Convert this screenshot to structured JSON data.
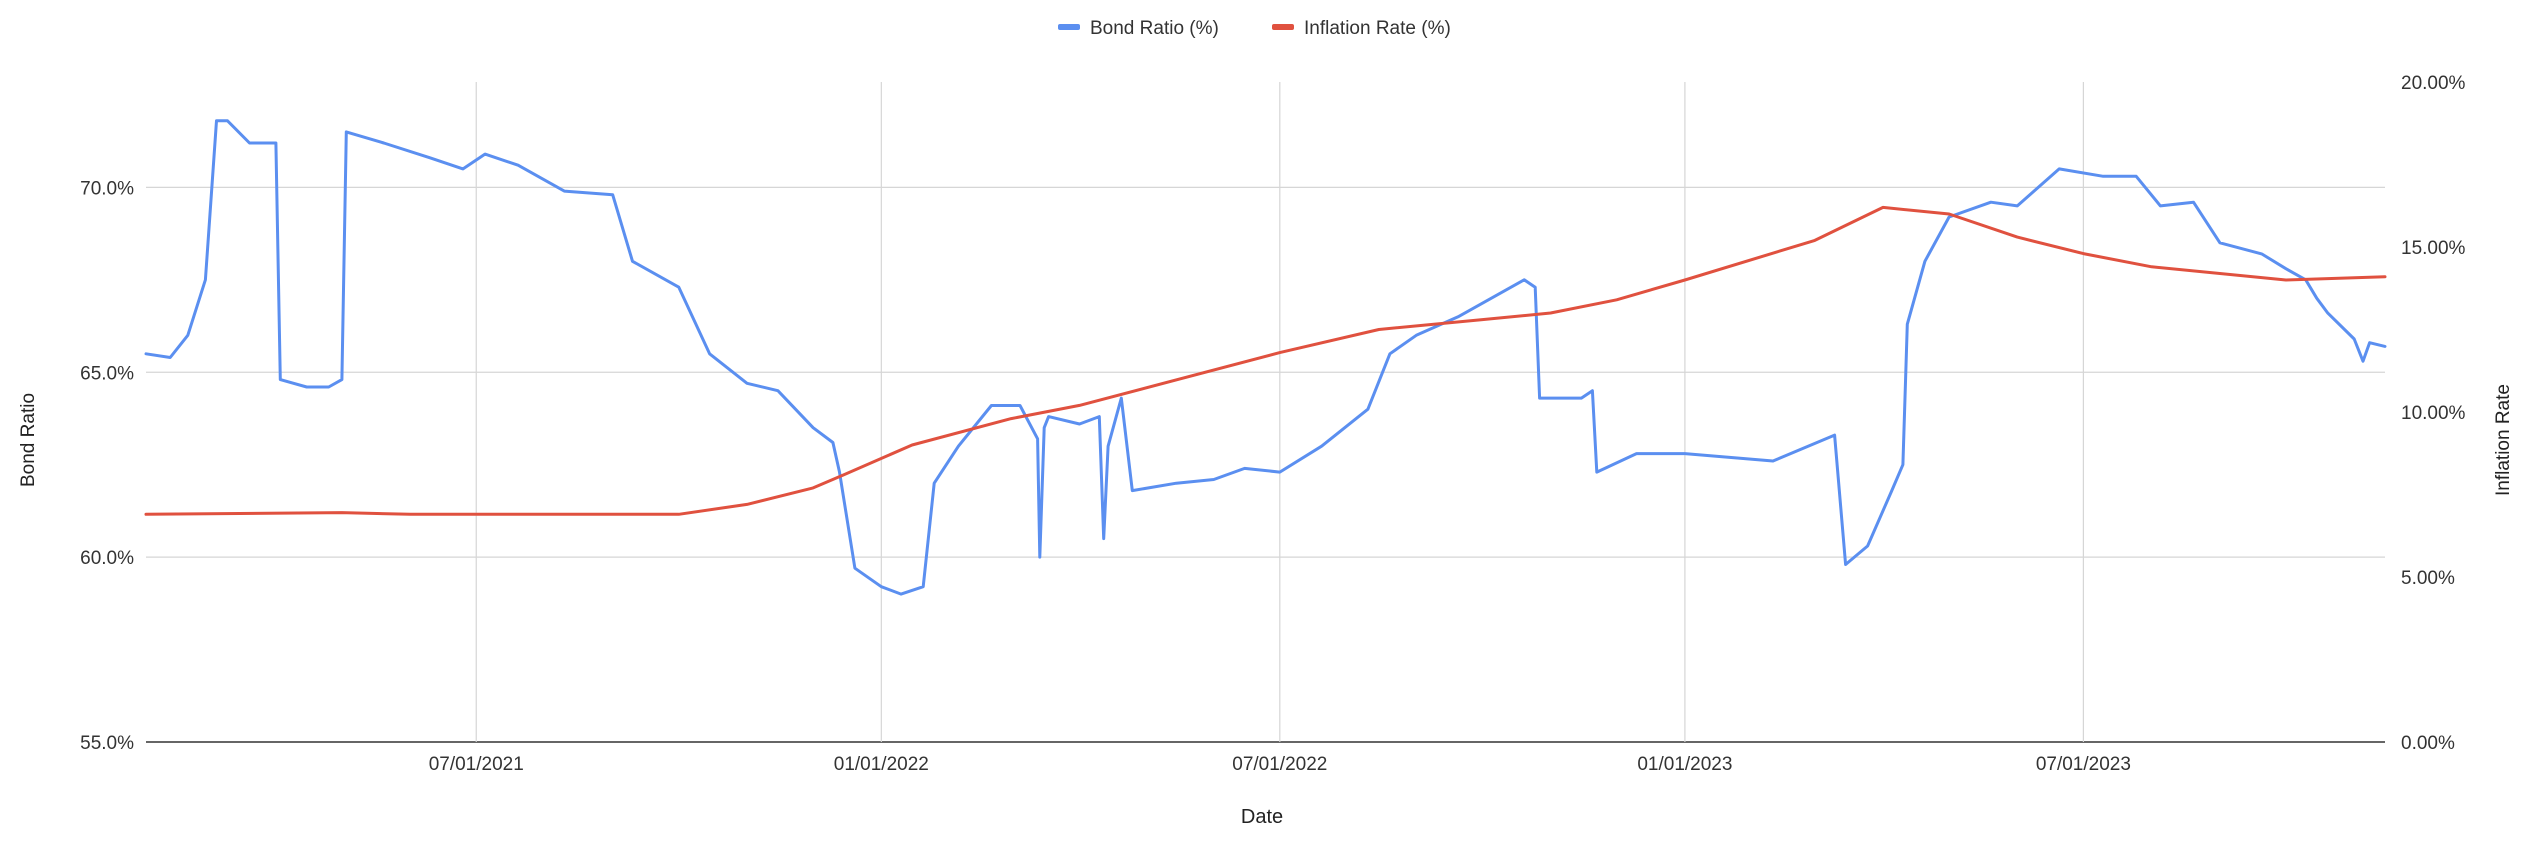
{
  "chart_data": {
    "type": "line",
    "xlabel": "Date",
    "y_left_label": "Bond Ratio",
    "y_right_label": "Inflation Rate",
    "x_range": [
      "2021-02-01",
      "2023-11-15"
    ],
    "x_ticks": [
      "2021-07-01",
      "2022-01-01",
      "2022-07-01",
      "2023-01-01",
      "2023-07-01"
    ],
    "x_tick_labels": [
      "07/01/2021",
      "01/01/2022",
      "07/01/2022",
      "01/01/2023",
      "07/01/2023"
    ],
    "y_left_ticks": [
      55,
      60,
      65,
      70
    ],
    "y_left_tick_labels": [
      "55.0%",
      "60.0%",
      "65.0%",
      "70.0%"
    ],
    "y_left_range": [
      55,
      72.85
    ],
    "y_right_ticks": [
      0,
      5,
      10,
      15,
      20
    ],
    "y_right_tick_labels": [
      "0.00%",
      "5.00%",
      "10.00%",
      "15.00%",
      "20.00%"
    ],
    "y_right_range": [
      0,
      20
    ],
    "grid": true,
    "legend_position": "top-center",
    "series": [
      {
        "name": "Bond Ratio (%)",
        "axis": "left",
        "color": "#5b8ff0",
        "x": [
          "2021-02-01",
          "2021-02-12",
          "2021-02-20",
          "2021-02-28",
          "2021-03-05",
          "2021-03-10",
          "2021-03-20",
          "2021-04-01",
          "2021-04-03",
          "2021-04-15",
          "2021-04-25",
          "2021-05-01",
          "2021-05-03",
          "2021-05-20",
          "2021-06-10",
          "2021-06-25",
          "2021-07-05",
          "2021-07-20",
          "2021-08-10",
          "2021-09-01",
          "2021-09-10",
          "2021-10-01",
          "2021-10-15",
          "2021-11-01",
          "2021-11-15",
          "2021-12-01",
          "2021-12-10",
          "2021-12-13",
          "2021-12-20",
          "2022-01-01",
          "2022-01-10",
          "2022-01-20",
          "2022-01-25",
          "2022-02-05",
          "2022-02-20",
          "2022-03-05",
          "2022-03-13",
          "2022-03-14",
          "2022-03-16",
          "2022-03-18",
          "2022-04-01",
          "2022-04-10",
          "2022-04-12",
          "2022-04-14",
          "2022-04-20",
          "2022-04-25",
          "2022-05-15",
          "2022-06-01",
          "2022-06-15",
          "2022-07-01",
          "2022-07-20",
          "2022-08-10",
          "2022-08-20",
          "2022-09-01",
          "2022-09-20",
          "2022-10-20",
          "2022-10-25",
          "2022-10-27",
          "2022-11-15",
          "2022-11-20",
          "2022-11-22",
          "2022-12-10",
          "2023-01-01",
          "2023-02-10",
          "2023-03-10",
          "2023-03-15",
          "2023-03-25",
          "2023-04-05",
          "2023-04-10",
          "2023-04-12",
          "2023-04-20",
          "2023-05-01",
          "2023-05-20",
          "2023-06-01",
          "2023-06-20",
          "2023-07-10",
          "2023-07-25",
          "2023-08-05",
          "2023-08-20",
          "2023-09-01",
          "2023-09-20",
          "2023-10-01",
          "2023-10-10",
          "2023-10-15",
          "2023-10-20",
          "2023-11-01",
          "2023-11-05",
          "2023-11-08",
          "2023-11-15"
        ],
        "values": [
          65.5,
          65.4,
          66,
          67.5,
          71.8,
          71.8,
          71.2,
          71.2,
          64.8,
          64.6,
          64.6,
          64.8,
          71.5,
          71.2,
          70.8,
          70.5,
          70.9,
          70.6,
          69.9,
          69.8,
          68,
          67.3,
          65.5,
          64.7,
          64.5,
          63.5,
          63.1,
          62.3,
          59.7,
          59.2,
          59,
          59.2,
          62,
          63,
          64.1,
          64.1,
          63.2,
          60,
          63.5,
          63.8,
          63.6,
          63.8,
          60.5,
          63,
          64.3,
          61.8,
          62,
          62.1,
          62.4,
          62.3,
          63,
          64,
          65.5,
          66,
          66.5,
          67.5,
          67.3,
          64.3,
          64.3,
          64.5,
          62.3,
          62.8,
          62.8,
          62.6,
          63.3,
          59.8,
          60.3,
          61.8,
          62.5,
          66.3,
          68,
          69.2,
          69.6,
          69.5,
          70.5,
          70.3,
          70.3,
          69.5,
          69.6,
          68.5,
          68.2,
          67.8,
          67.5,
          67,
          66.6,
          65.9,
          65.3,
          65.8,
          65.7
        ]
      },
      {
        "name": "Inflation Rate (%)",
        "axis": "right",
        "color": "#e0513f",
        "x": [
          "2021-02-01",
          "2021-05-01",
          "2021-06-01",
          "2021-10-01",
          "2021-11-01",
          "2021-12-01",
          "2021-12-15",
          "2022-01-15",
          "2022-03-01",
          "2022-04-01",
          "2022-07-01",
          "2022-08-15",
          "2022-10-01",
          "2022-11-01",
          "2022-12-01",
          "2023-01-01",
          "2023-03-01",
          "2023-04-01",
          "2023-05-01",
          "2023-06-01",
          "2023-07-01",
          "2023-08-01",
          "2023-10-01",
          "2023-11-15"
        ],
        "values": [
          6.9,
          6.95,
          6.9,
          6.9,
          7.2,
          7.7,
          8.1,
          9.0,
          9.8,
          10.2,
          11.8,
          12.5,
          12.8,
          13.0,
          13.4,
          14.0,
          15.2,
          16.2,
          16.0,
          15.3,
          14.8,
          14.4,
          14.0,
          14.1
        ]
      }
    ]
  }
}
